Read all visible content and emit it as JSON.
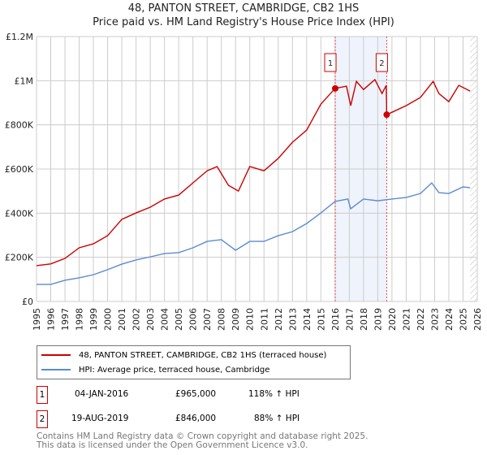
{
  "chart_data": {
    "type": "line",
    "title": "48, PANTON STREET, CAMBRIDGE, CB2 1HS",
    "subtitle": "Price paid vs. HM Land Registry's House Price Index (HPI)",
    "xlim": [
      1995,
      2026
    ],
    "ylim": [
      0,
      1200000
    ],
    "y_ticks": [
      {
        "v": 0,
        "label": "£0"
      },
      {
        "v": 200000,
        "label": "£200K"
      },
      {
        "v": 400000,
        "label": "£400K"
      },
      {
        "v": 600000,
        "label": "£600K"
      },
      {
        "v": 800000,
        "label": "£800K"
      },
      {
        "v": 1000000,
        "label": "£1M"
      },
      {
        "v": 1200000,
        "label": "£1.2M"
      }
    ],
    "x_ticks": [
      "1995",
      "1996",
      "1997",
      "1998",
      "1999",
      "2000",
      "2001",
      "2002",
      "2003",
      "2004",
      "2005",
      "2006",
      "2007",
      "2008",
      "2009",
      "2010",
      "2011",
      "2012",
      "2013",
      "2014",
      "2015",
      "2016",
      "2017",
      "2018",
      "2019",
      "2020",
      "2021",
      "2022",
      "2023",
      "2024",
      "2025",
      "2026"
    ],
    "grid": true,
    "series": [
      {
        "name": "48, PANTON STREET, CAMBRIDGE, CB2 1HS (terraced house)",
        "color": "#cc0000",
        "x": [
          1995,
          1996,
          1997,
          1998,
          1999,
          2000,
          2001,
          2002,
          2003,
          2004,
          2005,
          2006,
          2007,
          2007.7,
          2008.5,
          2009.2,
          2010,
          2011,
          2012,
          2013,
          2014,
          2015,
          2016.0,
          2016.8,
          2017.1,
          2017.5,
          2018,
          2018.8,
          2019.3,
          2019.6,
          2019.63,
          2020,
          2021,
          2022,
          2022.9,
          2023.3,
          2024,
          2024.7,
          2025.5
        ],
        "y": [
          162000,
          170000,
          195000,
          243000,
          261000,
          298000,
          372000,
          401000,
          427000,
          464000,
          482000,
          537000,
          592000,
          611000,
          526000,
          500000,
          611000,
          592000,
          648000,
          721000,
          776000,
          894000,
          965000,
          975000,
          887000,
          997000,
          960000,
          1005000,
          942000,
          979000,
          846000,
          857000,
          887000,
          924000,
          997000,
          942000,
          905000,
          979000,
          953000
        ]
      },
      {
        "name": "HPI: Average price, terraced house, Cambridge",
        "color": "#5b8bd0",
        "x": [
          1995,
          1996,
          1997,
          1998,
          1999,
          2000,
          2001,
          2002,
          2003,
          2004,
          2005,
          2006,
          2007,
          2008,
          2009,
          2010,
          2011,
          2012,
          2013,
          2014,
          2015,
          2016,
          2016.9,
          2017.1,
          2018,
          2019,
          2020,
          2021,
          2022,
          2022.8,
          2023.3,
          2024,
          2025,
          2025.5
        ],
        "y": [
          77000,
          77000,
          96000,
          107000,
          121000,
          144000,
          169000,
          188000,
          202000,
          217000,
          221000,
          243000,
          272000,
          280000,
          232000,
          272000,
          272000,
          298000,
          316000,
          353000,
          401000,
          453000,
          464000,
          420000,
          464000,
          456000,
          464000,
          471000,
          489000,
          537000,
          493000,
          489000,
          519000,
          515000
        ]
      }
    ],
    "sales": [
      {
        "id": "1",
        "x": 2016.01,
        "price": 965000,
        "date": "04-JAN-2016",
        "price_label": "£965,000",
        "hpi": "118% ↑ HPI"
      },
      {
        "id": "2",
        "x": 2019.63,
        "price": 846000,
        "date": "19-AUG-2019",
        "price_label": "£846,000",
        "hpi": "88% ↑ HPI"
      }
    ],
    "shaded_range": [
      2016.01,
      2019.63
    ],
    "forecast_hatch_from": 2025.5,
    "legend_placement": "below"
  },
  "footer": [
    "Contains HM Land Registry data © Crown copyright and database right 2025.",
    "This data is licensed under the Open Government Licence v3.0."
  ]
}
